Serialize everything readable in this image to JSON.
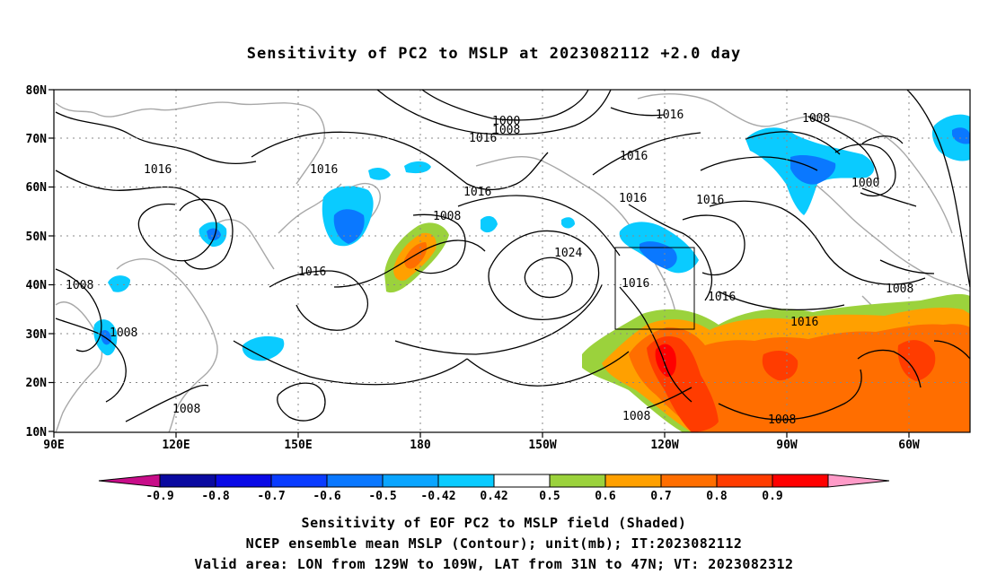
{
  "title": "Sensitivity of PC2 to MSLP at 2023082112 +2.0 day",
  "map": {
    "lat_labels": [
      "80N",
      "70N",
      "60N",
      "50N",
      "40N",
      "30N",
      "20N",
      "10N"
    ],
    "lon_labels": [
      "90E",
      "120E",
      "150E",
      "180",
      "150W",
      "120W",
      "90W",
      "60W"
    ],
    "contour_labels": [
      {
        "text": "1000"
      },
      {
        "text": "1008"
      },
      {
        "text": "1016"
      },
      {
        "text": "1016"
      },
      {
        "text": "1008"
      },
      {
        "text": "1016"
      },
      {
        "text": "1016"
      },
      {
        "text": "1008"
      },
      {
        "text": "1016"
      },
      {
        "text": "1008"
      },
      {
        "text": "1016"
      },
      {
        "text": "1016"
      },
      {
        "text": "1016"
      },
      {
        "text": "1024"
      },
      {
        "text": "1016"
      },
      {
        "text": "1016"
      },
      {
        "text": "1016"
      },
      {
        "text": "1008"
      },
      {
        "text": "1008"
      },
      {
        "text": "1008"
      },
      {
        "text": "1008"
      },
      {
        "text": "1000"
      },
      {
        "text": "1008"
      },
      {
        "text": "1016"
      }
    ],
    "valid_box": {
      "lon_min": "129W",
      "lon_max": "109W",
      "lat_min": "31N",
      "lat_max": "47N"
    }
  },
  "colorbar": {
    "labels": [
      "-0.9",
      "-0.8",
      "-0.7",
      "-0.6",
      "-0.5",
      "-0.42",
      "0.42",
      "0.5",
      "0.6",
      "0.7",
      "0.8",
      "0.9"
    ],
    "colors": [
      "#c80d89",
      "#0a0aa0",
      "#0a0ae6",
      "#0a3cff",
      "#0a78ff",
      "#0aa5ff",
      "#0acbff",
      "#ffffff",
      "#9bd23c",
      "#ffa000",
      "#ff6e00",
      "#ff3c00",
      "#ff0000",
      "#ff9bc8"
    ]
  },
  "captions": [
    "Sensitivity of EOF PC2 to MSLP field (Shaded)",
    "NCEP ensemble mean MSLP (Contour); unit(mb); IT:2023082112",
    "Valid area: LON from 129W to 109W, LAT from 31N to 47N; VT: 2023082312"
  ]
}
